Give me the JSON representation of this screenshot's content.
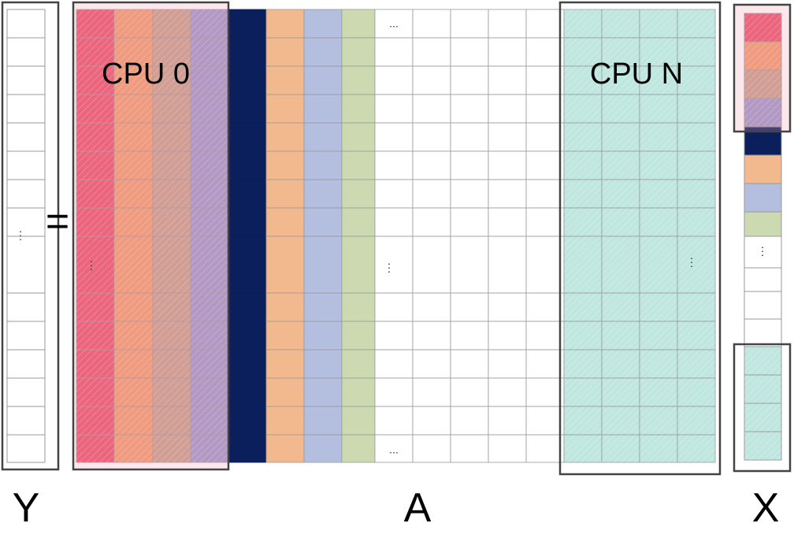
{
  "labels": {
    "y": "Y",
    "a": "A",
    "x": "X",
    "equals": "=",
    "cpu_first": "CPU 0",
    "cpu_last": "CPU N"
  },
  "dots": {
    "horizontal": "...",
    "vertical": "⋮"
  }
}
